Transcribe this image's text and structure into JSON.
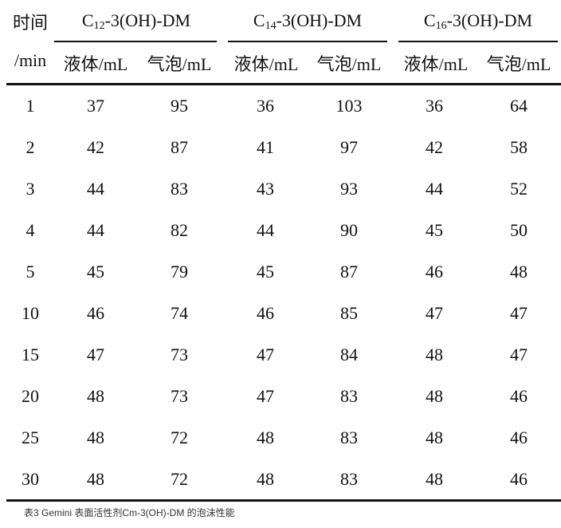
{
  "header": {
    "time_label": "时间",
    "time_unit": "/min",
    "groups": [
      {
        "prefix": "C",
        "sub": "12",
        "suffix": "-3(OH)-DM"
      },
      {
        "prefix": "C",
        "sub": "14",
        "suffix": "-3(OH)-DM"
      },
      {
        "prefix": "C",
        "sub": "16",
        "suffix": "-3(OH)-DM"
      }
    ],
    "liquid": "液体/mL",
    "foam": "气泡/mL"
  },
  "rows": [
    [
      "1",
      "37",
      "95",
      "36",
      "103",
      "36",
      "64"
    ],
    [
      "2",
      "42",
      "87",
      "41",
      "97",
      "42",
      "58"
    ],
    [
      "3",
      "44",
      "83",
      "43",
      "93",
      "44",
      "52"
    ],
    [
      "4",
      "44",
      "82",
      "44",
      "90",
      "45",
      "50"
    ],
    [
      "5",
      "45",
      "79",
      "45",
      "87",
      "46",
      "48"
    ],
    [
      "10",
      "46",
      "74",
      "46",
      "85",
      "47",
      "47"
    ],
    [
      "15",
      "47",
      "73",
      "47",
      "84",
      "48",
      "47"
    ],
    [
      "20",
      "48",
      "73",
      "47",
      "83",
      "48",
      "46"
    ],
    [
      "25",
      "48",
      "72",
      "48",
      "83",
      "48",
      "46"
    ],
    [
      "30",
      "48",
      "72",
      "48",
      "83",
      "48",
      "46"
    ]
  ],
  "caption": "表3 Gemini 表面活性剂Cm-3(OH)-DM 的泡沫性能"
}
